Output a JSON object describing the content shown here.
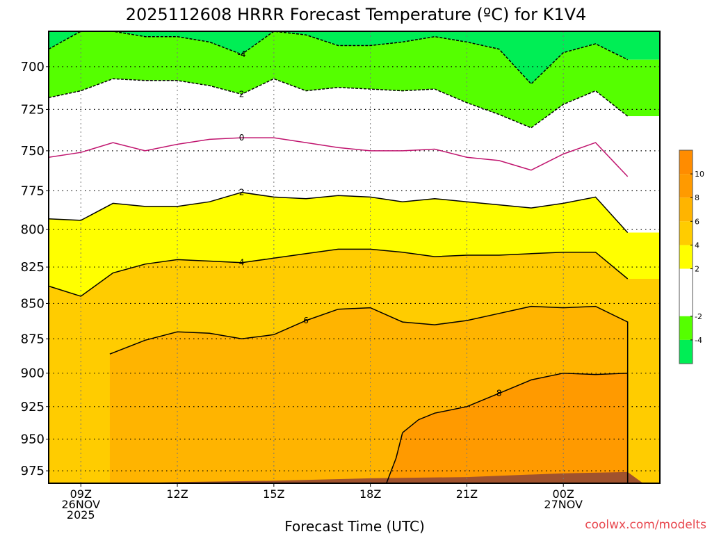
{
  "chart_data": {
    "type": "heatmap",
    "title": "2025112608 HRRR Forecast Temperature (ºC) for K1V4",
    "xlabel": "Forecast Time (UTC)",
    "ylabel": "",
    "credit": "coolwx.com/modelts",
    "y_scale": "log-pressure",
    "y_axis_inverted": true,
    "xlim": [
      8,
      27
    ],
    "ylim": [
      985,
      680
    ],
    "grid": true,
    "x_ticks": [
      {
        "x": 9,
        "lines": [
          "09Z",
          "26NOV",
          "2025"
        ]
      },
      {
        "x": 12,
        "lines": [
          "12Z"
        ]
      },
      {
        "x": 15,
        "lines": [
          "15Z"
        ]
      },
      {
        "x": 18,
        "lines": [
          "18Z"
        ]
      },
      {
        "x": 21,
        "lines": [
          "21Z"
        ]
      },
      {
        "x": 24,
        "lines": [
          "00Z",
          "27NOV"
        ]
      }
    ],
    "y_ticks": [
      700,
      725,
      750,
      775,
      800,
      825,
      850,
      875,
      900,
      925,
      950,
      975
    ],
    "colorbar": {
      "ticks": [
        10,
        8,
        6,
        4,
        2,
        -2,
        -4
      ],
      "bands": [
        {
          "from": 10,
          "to": 12,
          "color": "#ff8c00"
        },
        {
          "from": 8,
          "to": 10,
          "color": "#ff9a00"
        },
        {
          "from": 6,
          "to": 8,
          "color": "#ffb400"
        },
        {
          "from": 4,
          "to": 6,
          "color": "#ffcc00"
        },
        {
          "from": 2,
          "to": 4,
          "color": "#ffff00"
        },
        {
          "from": -2,
          "to": 2,
          "color": "#ffffff"
        },
        {
          "from": -4,
          "to": -2,
          "color": "#55ff00"
        },
        {
          "from": -6,
          "to": -4,
          "color": "#00ee55"
        }
      ]
    },
    "contours": [
      {
        "level": 2,
        "style": "dashed",
        "color": "#000000",
        "label": "2",
        "points": [
          [
            8,
            718
          ],
          [
            9,
            714
          ],
          [
            10,
            707
          ],
          [
            11,
            708
          ],
          [
            12,
            708
          ],
          [
            13,
            711
          ],
          [
            14,
            716
          ],
          [
            15,
            707
          ],
          [
            16,
            714
          ],
          [
            17,
            712
          ],
          [
            18,
            713
          ],
          [
            19,
            714
          ],
          [
            20,
            713
          ],
          [
            21,
            721
          ],
          [
            22,
            728
          ],
          [
            23,
            736
          ],
          [
            24,
            722
          ],
          [
            25,
            714
          ],
          [
            26,
            729
          ]
        ]
      },
      {
        "level": -4,
        "style": "dashed",
        "color": "#000000",
        "label": "-4",
        "points": [
          [
            8,
            690
          ],
          [
            9,
            680
          ],
          [
            10,
            680
          ],
          [
            11,
            683
          ],
          [
            12,
            683
          ],
          [
            13,
            686
          ],
          [
            14,
            693
          ],
          [
            15,
            680
          ],
          [
            16,
            682
          ],
          [
            17,
            688
          ],
          [
            18,
            688
          ],
          [
            19,
            686
          ],
          [
            20,
            683
          ],
          [
            21,
            686
          ],
          [
            22,
            690
          ],
          [
            23,
            710
          ],
          [
            24,
            692
          ],
          [
            25,
            687
          ],
          [
            26,
            696
          ]
        ]
      },
      {
        "level": 0,
        "style": "solid",
        "color": "#c0146e",
        "label": "0",
        "points": [
          [
            8,
            754
          ],
          [
            9,
            751
          ],
          [
            10,
            745
          ],
          [
            11,
            750
          ],
          [
            12,
            746
          ],
          [
            13,
            743
          ],
          [
            14,
            742
          ],
          [
            15,
            742
          ],
          [
            16,
            745
          ],
          [
            17,
            748
          ],
          [
            18,
            750
          ],
          [
            19,
            750
          ],
          [
            20,
            749
          ],
          [
            21,
            754
          ],
          [
            22,
            756
          ],
          [
            23,
            762
          ],
          [
            24,
            752
          ],
          [
            25,
            745
          ],
          [
            26,
            766
          ]
        ]
      },
      {
        "level": 2,
        "style": "solid",
        "color": "#000000",
        "label": "2",
        "points": [
          [
            8,
            793
          ],
          [
            9,
            794
          ],
          [
            10,
            783
          ],
          [
            11,
            785
          ],
          [
            12,
            785
          ],
          [
            13,
            782
          ],
          [
            14,
            776
          ],
          [
            15,
            779
          ],
          [
            16,
            780
          ],
          [
            17,
            778
          ],
          [
            18,
            779
          ],
          [
            19,
            782
          ],
          [
            20,
            780
          ],
          [
            21,
            782
          ],
          [
            22,
            784
          ],
          [
            23,
            786
          ],
          [
            24,
            783
          ],
          [
            25,
            779
          ],
          [
            26,
            802
          ]
        ]
      },
      {
        "level": 4,
        "style": "solid",
        "color": "#000000",
        "label": "4",
        "points": [
          [
            8,
            838
          ],
          [
            9,
            845
          ],
          [
            10,
            829
          ],
          [
            11,
            823
          ],
          [
            12,
            820
          ],
          [
            13,
            821
          ],
          [
            14,
            822
          ],
          [
            15,
            819
          ],
          [
            16,
            816
          ],
          [
            17,
            813
          ],
          [
            18,
            813
          ],
          [
            19,
            815
          ],
          [
            20,
            818
          ],
          [
            21,
            817
          ],
          [
            22,
            817
          ],
          [
            23,
            816
          ],
          [
            24,
            815
          ],
          [
            25,
            815
          ],
          [
            26,
            833
          ]
        ]
      },
      {
        "level": 6,
        "style": "solid",
        "color": "#000000",
        "label": "6",
        "points": [
          [
            9.9,
            886
          ],
          [
            11,
            876
          ],
          [
            12,
            870
          ],
          [
            13,
            871
          ],
          [
            14,
            875
          ],
          [
            15,
            872
          ],
          [
            16,
            862
          ],
          [
            17,
            854
          ],
          [
            18,
            853
          ],
          [
            19,
            863
          ],
          [
            20,
            865
          ],
          [
            21,
            862
          ],
          [
            22,
            857
          ],
          [
            23,
            852
          ],
          [
            24,
            853
          ],
          [
            25,
            852
          ],
          [
            26,
            863
          ],
          [
            26,
            985
          ],
          [
            9.9,
            985
          ]
        ]
      },
      {
        "level": 8,
        "style": "solid",
        "color": "#000000",
        "label": "8",
        "points": [
          [
            19,
            945
          ],
          [
            19.5,
            935
          ],
          [
            20,
            930
          ],
          [
            21,
            925
          ],
          [
            22,
            915
          ],
          [
            23,
            905
          ],
          [
            24,
            900
          ],
          [
            25,
            901
          ],
          [
            26,
            900
          ],
          [
            26,
            985
          ],
          [
            18.5,
            985
          ],
          [
            18.8,
            965
          ],
          [
            19,
            945
          ]
        ]
      }
    ],
    "surface": {
      "color": "#a0522d",
      "pressure": [
        [
          8,
          987
        ],
        [
          12,
          984
        ],
        [
          15,
          983
        ],
        [
          18,
          981
        ],
        [
          21,
          980
        ],
        [
          24,
          977
        ],
        [
          26,
          976
        ]
      ]
    }
  }
}
